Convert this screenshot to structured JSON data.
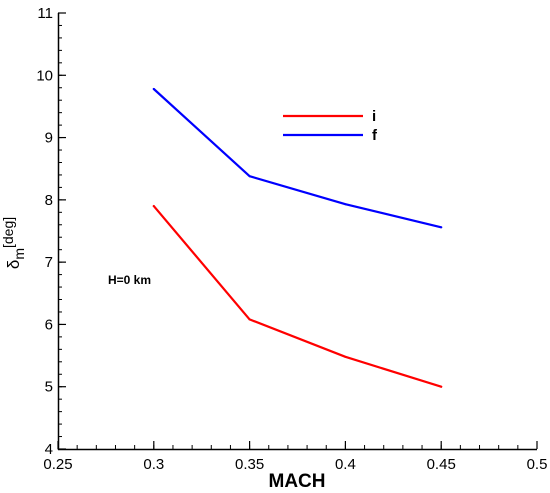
{
  "chart_data": {
    "type": "line",
    "xlabel": "MACH",
    "ylabel": {
      "main": "δ",
      "sub": "m",
      "sup": "[deg]"
    },
    "xlim": [
      0.25,
      0.5
    ],
    "ylim": [
      4,
      11
    ],
    "x_ticks": [
      "0.25",
      "0.3",
      "0.35",
      "0.4",
      "0.45",
      "0.5"
    ],
    "y_ticks": [
      "4",
      "5",
      "6",
      "7",
      "8",
      "9",
      "10",
      "11"
    ],
    "x_tick_values": [
      0.25,
      0.3,
      0.35,
      0.4,
      0.45,
      0.5
    ],
    "y_tick_values": [
      4,
      5,
      6,
      7,
      8,
      9,
      10,
      11
    ],
    "x_minor_step": 0.01,
    "y_minor_step": 0.2,
    "grid": false,
    "legend_position": "top-center",
    "annotation": "H=0 km",
    "series": [
      {
        "name": "i",
        "color": "#ff0000",
        "x": [
          0.3,
          0.35,
          0.4,
          0.45
        ],
        "y": [
          7.9,
          6.08,
          5.48,
          5.0
        ]
      },
      {
        "name": "f",
        "color": "#0000ff",
        "x": [
          0.3,
          0.35,
          0.4,
          0.45
        ],
        "y": [
          9.78,
          8.38,
          7.93,
          7.56
        ]
      }
    ]
  }
}
